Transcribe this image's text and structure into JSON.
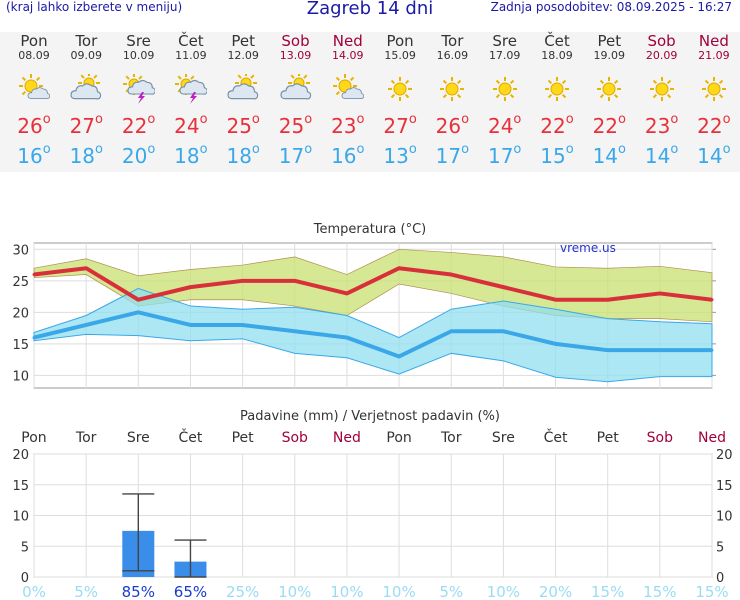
{
  "header": {
    "left_note": "(kraj lahko izberete v meniju)",
    "title": "Zagreb 14 dni",
    "updated": "Zadnja posodobitev: 08.09.2025 - 16:27"
  },
  "days": [
    {
      "day": "Pon",
      "date": "08.09",
      "icon": "sun-cloud-icon",
      "tmax": "26",
      "tmin": "16",
      "weekend": false
    },
    {
      "day": "Tor",
      "date": "09.09",
      "icon": "cloud-sun-icon",
      "tmax": "27",
      "tmin": "18",
      "weekend": false
    },
    {
      "day": "Sre",
      "date": "10.09",
      "icon": "thunderstorm-icon",
      "tmax": "22",
      "tmin": "20",
      "weekend": false
    },
    {
      "day": "Čet",
      "date": "11.09",
      "icon": "thunderstorm-icon",
      "tmax": "24",
      "tmin": "18",
      "weekend": false
    },
    {
      "day": "Pet",
      "date": "12.09",
      "icon": "cloud-sun-icon",
      "tmax": "25",
      "tmin": "18",
      "weekend": false
    },
    {
      "day": "Sob",
      "date": "13.09",
      "icon": "cloud-sun-icon",
      "tmax": "25",
      "tmin": "17",
      "weekend": true
    },
    {
      "day": "Ned",
      "date": "14.09",
      "icon": "sun-cloud-icon",
      "tmax": "23",
      "tmin": "16",
      "weekend": true
    },
    {
      "day": "Pon",
      "date": "15.09",
      "icon": "sun-icon",
      "tmax": "27",
      "tmin": "13",
      "weekend": false
    },
    {
      "day": "Tor",
      "date": "16.09",
      "icon": "sun-icon",
      "tmax": "26",
      "tmin": "17",
      "weekend": false
    },
    {
      "day": "Sre",
      "date": "17.09",
      "icon": "sun-icon",
      "tmax": "24",
      "tmin": "17",
      "weekend": false
    },
    {
      "day": "Čet",
      "date": "18.09",
      "icon": "sun-icon",
      "tmax": "22",
      "tmin": "15",
      "weekend": false
    },
    {
      "day": "Pet",
      "date": "19.09",
      "icon": "sun-icon",
      "tmax": "22",
      "tmin": "14",
      "weekend": false
    },
    {
      "day": "Sob",
      "date": "20.09",
      "icon": "sun-icon",
      "tmax": "23",
      "tmin": "14",
      "weekend": true
    },
    {
      "day": "Ned",
      "date": "21.09",
      "icon": "sun-icon",
      "tmax": "22",
      "tmin": "14",
      "weekend": true
    }
  ],
  "degree_symbol": "o",
  "chart_data": [
    {
      "type": "line",
      "title": "Temperatura (°C)",
      "watermark": "vreme.us",
      "categories": [
        "Pon",
        "Tor",
        "Sre",
        "Čet",
        "Pet",
        "Sob",
        "Ned",
        "Pon",
        "Tor",
        "Sre",
        "Čet",
        "Pet",
        "Sob",
        "Ned"
      ],
      "ylim": [
        8,
        31
      ],
      "yticks": [
        10,
        15,
        20,
        25,
        30
      ],
      "grid": true,
      "x": [
        0,
        1,
        2,
        3,
        4,
        5,
        6,
        7,
        8,
        9,
        10,
        11,
        12,
        13
      ],
      "series": [
        {
          "role": "max",
          "color": "#d8303a",
          "values": [
            26,
            27,
            22,
            24,
            25,
            25,
            23,
            27,
            26,
            24,
            22,
            22,
            23,
            22
          ]
        },
        {
          "role": "min",
          "color": "#3aa8e8",
          "values": [
            16,
            18,
            20,
            18,
            18,
            17,
            16,
            13,
            17,
            17,
            15,
            14,
            14,
            14
          ]
        },
        {
          "role": "max-band",
          "color": "#c8e070",
          "upper": [
            27,
            28.5,
            25.8,
            26.8,
            27.5,
            28.8,
            26,
            30,
            29.5,
            28.8,
            27.2,
            27,
            27.3,
            26.3
          ],
          "lower": [
            25.5,
            26,
            21,
            22,
            22,
            21,
            19.5,
            24.5,
            23,
            21,
            19.5,
            19,
            19,
            18.5
          ]
        },
        {
          "role": "min-band",
          "color": "#90dfef",
          "upper": [
            16.8,
            19.5,
            23.8,
            21,
            20.5,
            20.8,
            19.5,
            16,
            20.5,
            21.8,
            20.5,
            19,
            18.5,
            18.2
          ],
          "lower": [
            15.5,
            16.5,
            16.3,
            15.5,
            15.8,
            13.5,
            12.8,
            10.2,
            13.5,
            12.3,
            9.7,
            9,
            9.8,
            9.8
          ]
        }
      ]
    },
    {
      "type": "bar",
      "title": "Padavine (mm) / Verjetnost padavin (%)",
      "categories": [
        "Pon",
        "Tor",
        "Sre",
        "Čet",
        "Pet",
        "Sob",
        "Ned",
        "Pon",
        "Tor",
        "Sre",
        "Čet",
        "Pet",
        "Sob",
        "Ned"
      ],
      "weekend": [
        false,
        false,
        false,
        false,
        false,
        true,
        true,
        false,
        false,
        false,
        false,
        false,
        true,
        true
      ],
      "ylim": [
        0,
        20
      ],
      "yticks": [
        0,
        5,
        10,
        15,
        20
      ],
      "grid": true,
      "values": [
        0,
        0,
        7.5,
        2.5,
        0,
        0,
        0,
        0,
        0,
        0,
        0,
        0,
        0,
        0
      ],
      "error_high": [
        0,
        0,
        13.5,
        6,
        0,
        0,
        0,
        0,
        0,
        0,
        0,
        0,
        0,
        0
      ],
      "error_low": [
        0,
        0,
        1,
        0,
        0,
        0,
        0,
        0,
        0,
        0,
        0,
        0,
        0,
        0
      ],
      "bar_color": "#3a8de8",
      "probability": [
        "0%",
        "5%",
        "85%",
        "65%",
        "25%",
        "10%",
        "10%",
        "10%",
        "5%",
        "10%",
        "20%",
        "15%",
        "15%",
        "15%"
      ],
      "probability_strong": [
        false,
        false,
        true,
        true,
        false,
        false,
        false,
        false,
        false,
        false,
        false,
        false,
        false,
        false
      ]
    }
  ]
}
